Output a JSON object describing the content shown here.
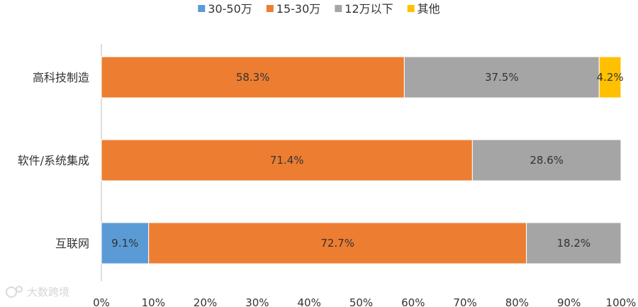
{
  "chart_data": {
    "type": "bar",
    "orientation": "horizontal",
    "stacked": "percent",
    "categories": [
      "高科技制造",
      "软件/系统集成",
      "互联网"
    ],
    "series": [
      {
        "name": "30-50万",
        "color": "#5B9BD5",
        "values": [
          0,
          0,
          9.1
        ],
        "labels": [
          "",
          "",
          "9.1%"
        ]
      },
      {
        "name": "15-30万",
        "color": "#ED7D31",
        "values": [
          58.3,
          71.4,
          72.7
        ],
        "labels": [
          "58.3%",
          "71.4%",
          "72.7%"
        ]
      },
      {
        "name": "12万以下",
        "color": "#A5A5A5",
        "values": [
          37.5,
          28.6,
          18.2
        ],
        "labels": [
          "37.5%",
          "28.6%",
          "18.2%"
        ]
      },
      {
        "name": "其他",
        "color": "#FFC000",
        "values": [
          4.2,
          0,
          0
        ],
        "labels": [
          "4.2%",
          "",
          ""
        ]
      }
    ],
    "xlim": [
      0,
      100
    ],
    "xticks": [
      "0%",
      "10%",
      "20%",
      "30%",
      "40%",
      "50%",
      "60%",
      "70%",
      "80%",
      "90%",
      "100%"
    ],
    "legend_position": "top",
    "grid": false
  },
  "watermark": {
    "text": "大数跨境"
  }
}
